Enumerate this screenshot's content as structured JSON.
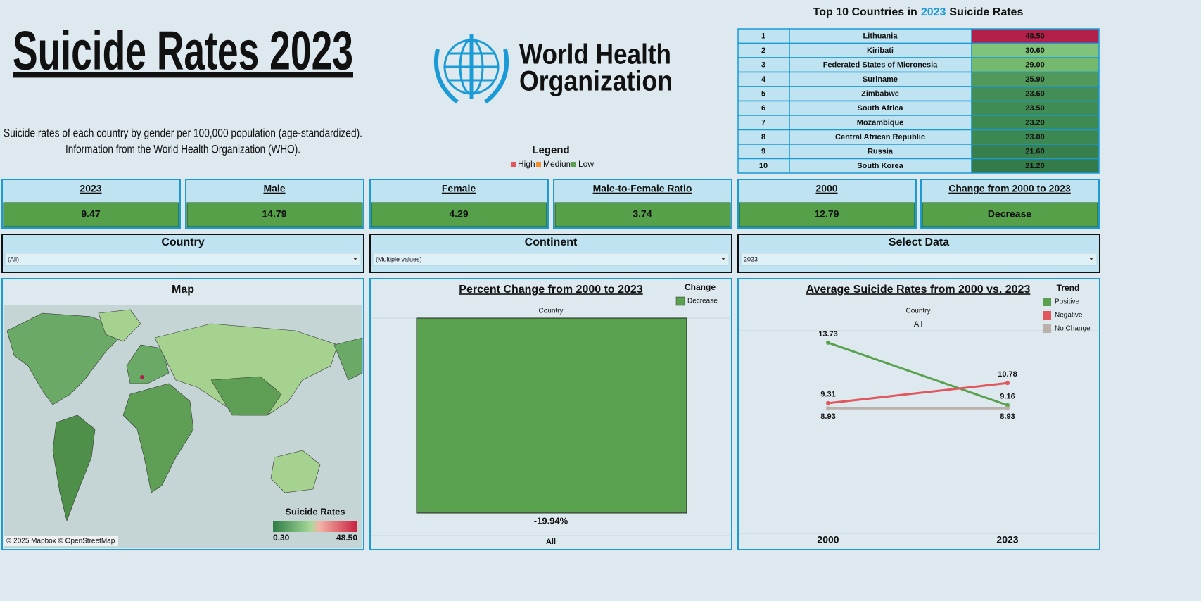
{
  "header": {
    "title": "Suicide Rates 2023",
    "subtitle": [
      "Suicide rates of each country by gender per 100,000 population (age-standardized).",
      "Information from the World Health Organization (WHO)."
    ],
    "logo": [
      "World Health",
      "Organization"
    ]
  },
  "legend": {
    "title": "Legend",
    "items": [
      {
        "label": "High",
        "color": "#e0585e"
      },
      {
        "label": "Medium",
        "color": "#f28e2b"
      },
      {
        "label": "Low",
        "color": "#59a14f"
      }
    ]
  },
  "top10": {
    "title": [
      "Top 10 Countries in",
      "2023",
      "Suicide Rates"
    ],
    "rows": [
      {
        "rank": "1",
        "country": "Lithuania",
        "rate": "48.50",
        "color": "#b3204a"
      },
      {
        "rank": "2",
        "country": "Kiribati",
        "rate": "30.60",
        "color": "#7fc47a"
      },
      {
        "rank": "3",
        "country": "Federated States of Micronesia",
        "rate": "29.00",
        "color": "#74b96d"
      },
      {
        "rank": "4",
        "country": "Suriname",
        "rate": "25.90",
        "color": "#50995a"
      },
      {
        "rank": "5",
        "country": "Zimbabwe",
        "rate": "23.60",
        "color": "#428e56"
      },
      {
        "rank": "6",
        "country": "South Africa",
        "rate": "23.50",
        "color": "#408c55"
      },
      {
        "rank": "7",
        "country": "Mozambique",
        "rate": "23.20",
        "color": "#3e8a53"
      },
      {
        "rank": "8",
        "country": "Central African Republic",
        "rate": "23.00",
        "color": "#3c8852"
      },
      {
        "rank": "9",
        "country": "Russia",
        "rate": "21.60",
        "color": "#37804e"
      },
      {
        "rank": "10",
        "country": "South Korea",
        "rate": "21.20",
        "color": "#337b4b"
      }
    ]
  },
  "kpis": [
    {
      "label": "2023",
      "value": "9.47"
    },
    {
      "label": "Male",
      "value": "14.79"
    },
    {
      "label": "Female",
      "value": "4.29"
    },
    {
      "label": "Male-to-Female Ratio",
      "value": "3.74"
    },
    {
      "label": "2000",
      "value": "12.79"
    },
    {
      "label": "Change from 2000 to 2023",
      "value": "Decrease"
    }
  ],
  "filters": [
    {
      "label": "Country",
      "value": "(All)"
    },
    {
      "label": "Continent",
      "value": "(Multiple values)"
    },
    {
      "label": "Select Data",
      "value": "2023"
    }
  ],
  "map": {
    "title": "Map",
    "legend_title": "Suicide Rates",
    "legend_min": "0.30",
    "legend_max": "48.50",
    "credit": "© 2025 Mapbox © OpenStreetMap"
  },
  "bar_chart": {
    "type": "bar",
    "title": "Percent Change from 2000 to 2023",
    "header": "Country",
    "categories": [
      "All"
    ],
    "values": [
      -19.94
    ],
    "value_labels": [
      "-19.94%"
    ],
    "ylim": [
      -20,
      0
    ],
    "legend_title": "Change",
    "series_name": "Decrease",
    "color": "#59a14f"
  },
  "line_chart": {
    "type": "line",
    "title": "Average Suicide Rates from 2000 vs. 2023",
    "header": "Country",
    "header_value": "All",
    "categories": [
      "2000",
      "2023"
    ],
    "ylim": [
      -1.5,
      14.6
    ],
    "legend_title": "Trend",
    "series": [
      {
        "name": "Positive",
        "color": "#59a14f",
        "values": [
          13.73,
          9.16
        ]
      },
      {
        "name": "Negative",
        "color": "#e0585e",
        "values": [
          9.31,
          10.78
        ]
      },
      {
        "name": "No Change",
        "color": "#bab0ac",
        "values": [
          8.93,
          8.93
        ]
      }
    ]
  }
}
